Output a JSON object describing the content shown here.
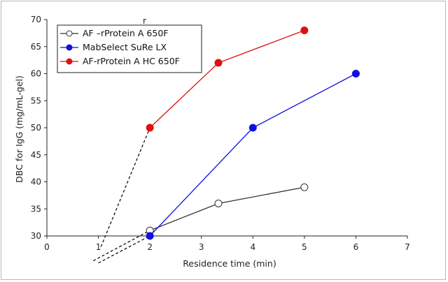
{
  "chart_data": {
    "type": "line",
    "xlabel": "Residence time (min)",
    "ylabel": "DBC for IgG (mg/mL-gel)",
    "xlim": [
      0,
      7
    ],
    "ylim": [
      30,
      70
    ],
    "xticks": [
      "0",
      "1",
      "2",
      "3",
      "4",
      "5",
      "6",
      "7"
    ],
    "yticks": [
      "30",
      "35",
      "40",
      "45",
      "50",
      "55",
      "60",
      "65",
      "70"
    ],
    "grid": false,
    "legend_position": "top-left",
    "stray_mark": "r",
    "series": [
      {
        "name": "AF –rProtein A 650F",
        "color": "#333333",
        "marker": "open-circle",
        "x": [
          2,
          3.33,
          5
        ],
        "y": [
          31,
          36,
          39
        ]
      },
      {
        "name": "MabSelect SuRe LX",
        "color": "#1010e0",
        "marker": "filled-circle",
        "x": [
          2,
          4,
          6
        ],
        "y": [
          30,
          50,
          60
        ]
      },
      {
        "name": "AF-rProtein A HC 650F",
        "color": "#e01010",
        "marker": "filled-circle",
        "x": [
          2,
          3.33,
          5
        ],
        "y": [
          50,
          62,
          68
        ]
      }
    ],
    "extrapolations": [
      {
        "color": "#000000",
        "style": "dashed",
        "x": [
          0.9,
          2
        ],
        "y": [
          25.4,
          31
        ]
      },
      {
        "color": "#000000",
        "style": "dashed",
        "x": [
          1.0,
          2
        ],
        "y": [
          25,
          30
        ]
      },
      {
        "color": "#000000",
        "style": "dashed",
        "x": [
          1.05,
          2
        ],
        "y": [
          28,
          50
        ]
      }
    ]
  }
}
